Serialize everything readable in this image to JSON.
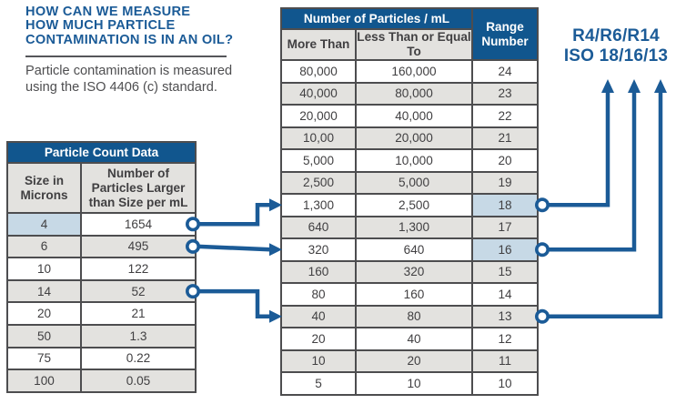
{
  "colors": {
    "accent_blue": "#1b5b97",
    "header_blue": "#11568e",
    "highlight_blue": "#c7d9e6",
    "row_gray": "#e3e2df",
    "border_gray": "#4d4d4f"
  },
  "intro": {
    "title_lines": [
      "HOW CAN WE MEASURE",
      "HOW MUCH PARTICLE",
      "CONTAMINATION IS IN AN OIL?"
    ],
    "body": "Particle contamination is  measured using the ISO 4406 (c) standard."
  },
  "particle_count_table": {
    "title": "Particle Count Data",
    "columns": [
      "Size in Microns",
      "Number of Particles Larger than Size per mL"
    ],
    "rows": [
      {
        "size": "4",
        "count": "1654",
        "highlight": true
      },
      {
        "size": "6",
        "count": "495",
        "highlight": true
      },
      {
        "size": "10",
        "count": "122",
        "highlight": false
      },
      {
        "size": "14",
        "count": "52",
        "highlight": true
      },
      {
        "size": "20",
        "count": "21",
        "highlight": false
      },
      {
        "size": "50",
        "count": "1.3",
        "highlight": false
      },
      {
        "size": "75",
        "count": "0.22",
        "highlight": false
      },
      {
        "size": "100",
        "count": "0.05",
        "highlight": false
      }
    ]
  },
  "range_table": {
    "group_header": "Number of Particles / mL",
    "columns": [
      "More Than",
      "Less Than or Equal To"
    ],
    "range_header": "Range Number",
    "rows": [
      {
        "more": "80,000",
        "less": "160,000",
        "range": "24",
        "highlight": false
      },
      {
        "more": "40,000",
        "less": "80,000",
        "range": "23",
        "highlight": false
      },
      {
        "more": "20,000",
        "less": "40,000",
        "range": "22",
        "highlight": false
      },
      {
        "more": "10,00",
        "less": "20,000",
        "range": "21",
        "highlight": false
      },
      {
        "more": "5,000",
        "less": "10,000",
        "range": "20",
        "highlight": false
      },
      {
        "more": "2,500",
        "less": "5,000",
        "range": "19",
        "highlight": false
      },
      {
        "more": "1,300",
        "less": "2,500",
        "range": "18",
        "highlight": true
      },
      {
        "more": "640",
        "less": "1,300",
        "range": "17",
        "highlight": false
      },
      {
        "more": "320",
        "less": "640",
        "range": "16",
        "highlight": true
      },
      {
        "more": "160",
        "less": "320",
        "range": "15",
        "highlight": false
      },
      {
        "more": "80",
        "less": "160",
        "range": "14",
        "highlight": false
      },
      {
        "more": "40",
        "less": "80",
        "range": "13",
        "highlight": true
      },
      {
        "more": "20",
        "less": "40",
        "range": "12",
        "highlight": false
      },
      {
        "more": "10",
        "less": "20",
        "range": "11",
        "highlight": false
      },
      {
        "more": "5",
        "less": "10",
        "range": "10",
        "highlight": false
      }
    ]
  },
  "mappings": [
    {
      "micron_size": "4",
      "range_number": "18"
    },
    {
      "micron_size": "6",
      "range_number": "16"
    },
    {
      "micron_size": "14",
      "range_number": "13"
    }
  ],
  "result_ranges": [
    "18",
    "16",
    "13"
  ],
  "result_label": {
    "line1": "R4/R6/R14",
    "line2": "ISO 18/16/13"
  }
}
